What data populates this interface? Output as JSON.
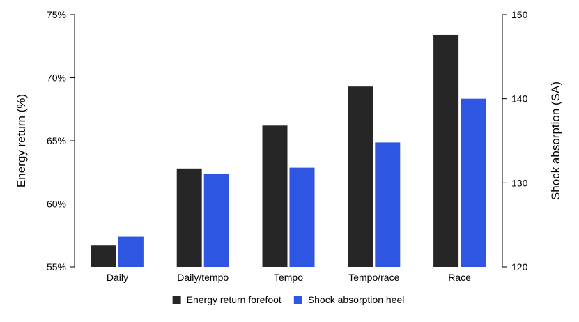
{
  "chart_data": {
    "type": "bar",
    "categories": [
      "Daily",
      "Daily/tempo",
      "Tempo",
      "Tempo/race",
      "Race"
    ],
    "series": [
      {
        "name": "Energy return forefoot",
        "axis": "left",
        "color": "#262626",
        "values": [
          56.7,
          62.8,
          66.2,
          69.3,
          73.4
        ]
      },
      {
        "name": "Shock absorption heel",
        "axis": "right",
        "color": "#2f56e3",
        "values": [
          123.6,
          131.1,
          131.8,
          134.8,
          140.0
        ]
      }
    ],
    "y_left": {
      "label": "Energy return (%)",
      "lim": [
        55,
        75
      ],
      "ticks": [
        55,
        60,
        65,
        70,
        75
      ],
      "tick_labels": [
        "55%",
        "60%",
        "65%",
        "70%",
        "75%"
      ]
    },
    "y_right": {
      "label": "Shock absorption (SA)",
      "lim": [
        120,
        150
      ],
      "ticks": [
        120,
        130,
        140,
        150
      ],
      "tick_labels": [
        "120",
        "130",
        "140",
        "150"
      ]
    },
    "legend_position": "bottom",
    "grid": false
  }
}
